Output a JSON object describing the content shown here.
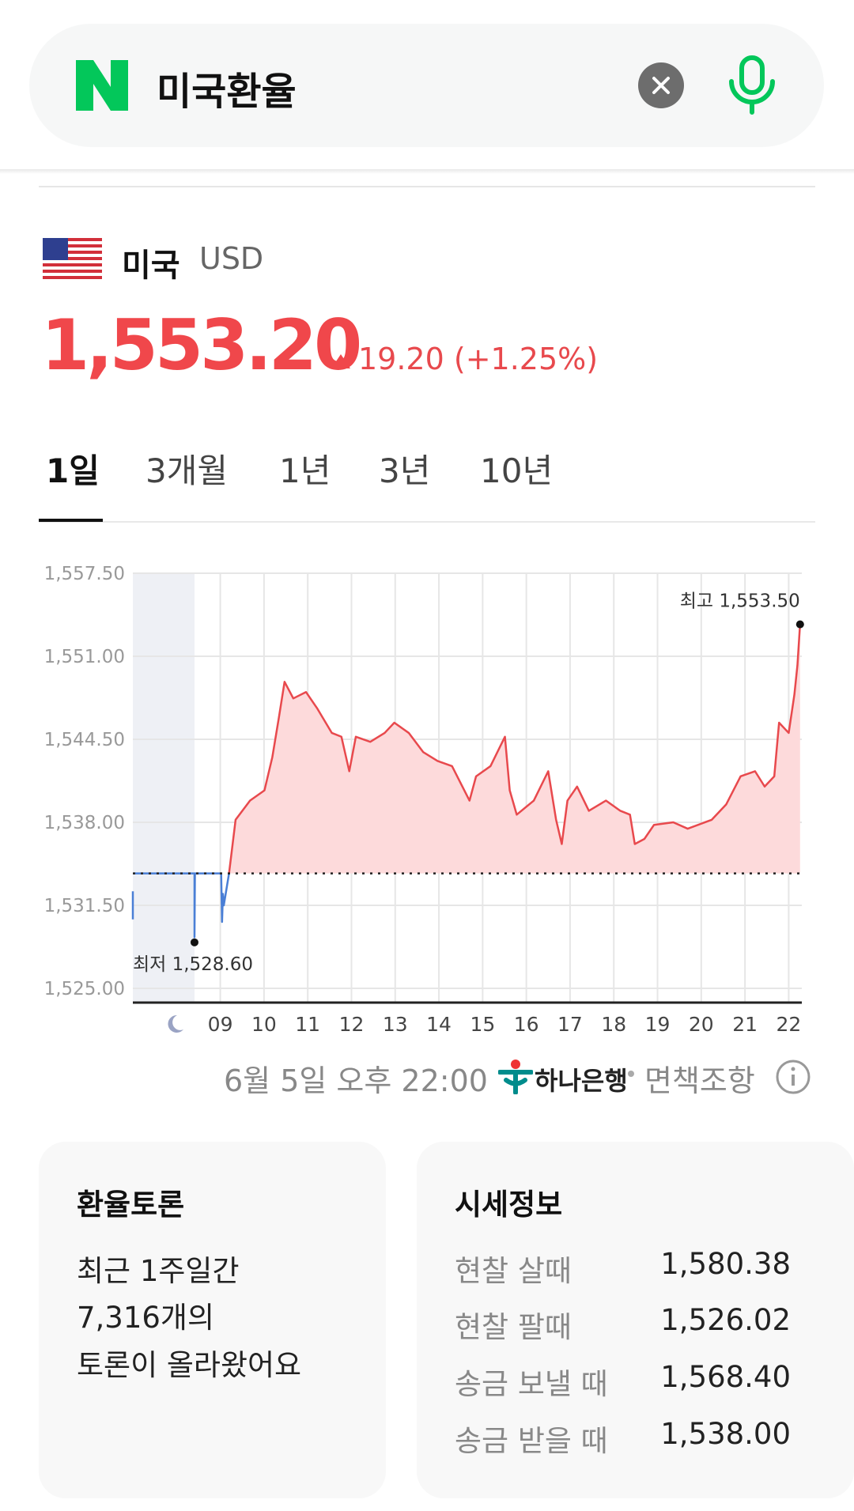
{
  "search": {
    "query": "미국환율"
  },
  "currency": {
    "country": "미국",
    "code": "USD",
    "rate": "1,553.20",
    "change": "19.20 (+1.25%)"
  },
  "tabs": [
    "1일",
    "3개월",
    "1년",
    "3년",
    "10년"
  ],
  "chart_data": {
    "type": "line",
    "xlim": [
      7,
      22.3
    ],
    "xticks": [
      {
        "value": 9,
        "label": "09"
      },
      10,
      11,
      12,
      13,
      14,
      15,
      16,
      17,
      18,
      19,
      20,
      21,
      22
    ],
    "ylim": [
      1525,
      1557.5
    ],
    "yticks": [
      {
        "value": 1525,
        "label": "1,525.00"
      },
      {
        "value": 1531.5,
        "label": "1,531.50"
      },
      {
        "value": 1538,
        "label": "1,538.00"
      },
      {
        "value": 1544.5,
        "label": "1,544.50"
      },
      {
        "value": 1551,
        "label": "1,551.00"
      },
      {
        "value": 1557.5,
        "label": "1,557.50"
      }
    ],
    "grid": true,
    "baseline": 1534,
    "night_range": [
      7,
      8.41
    ],
    "series": [
      {
        "color": "#4a7fd6",
        "x": [
          7.0,
          7.0,
          7.01,
          7.02,
          8.41,
          8.41,
          8.42,
          9.02,
          9.04,
          9.06,
          9.08,
          9.2
        ],
        "values": [
          1532.6,
          1530.4,
          null,
          1534,
          1534,
          1529,
          1534,
          1534,
          1530.2,
          1532.4,
          1531.5,
          1534
        ]
      },
      {
        "color": "#e8494d",
        "fill": "#fddadb",
        "x": [
          9.2,
          9.35,
          9.68,
          10.01,
          10.19,
          10.34,
          10.47,
          10.67,
          10.96,
          11.22,
          11.55,
          11.77,
          11.95,
          12.1,
          12.43,
          12.76,
          12.98,
          13.31,
          13.64,
          13.97,
          14.3,
          14.7,
          14.85,
          15.18,
          15.51,
          15.62,
          15.78,
          16.17,
          16.5,
          16.68,
          16.81,
          16.94,
          17.16,
          17.43,
          17.82,
          18.15,
          18.37,
          18.48,
          18.7,
          18.92,
          19.36,
          19.69,
          20.24,
          20.57,
          20.9,
          21.23,
          21.45,
          21.67,
          21.78,
          22.0,
          22.13,
          22.2,
          22.26
        ],
        "values": [
          1534.0,
          1538.2,
          1539.7,
          1540.5,
          1543.1,
          1546.2,
          1549.0,
          1547.7,
          1548.2,
          1546.9,
          1545.0,
          1544.7,
          1542.0,
          1544.7,
          1544.3,
          1545.0,
          1545.8,
          1545.0,
          1543.5,
          1542.8,
          1542.4,
          1539.7,
          1541.6,
          1542.4,
          1544.7,
          1540.5,
          1538.6,
          1539.7,
          1542.0,
          1538.2,
          1536.3,
          1539.7,
          1540.8,
          1538.9,
          1539.7,
          1538.9,
          1538.6,
          1536.3,
          1536.7,
          1537.8,
          1538.0,
          1537.5,
          1538.2,
          1539.4,
          1541.6,
          1542.0,
          1540.8,
          1541.6,
          1545.8,
          1545.0,
          1548.0,
          1550.3,
          1553.5
        ]
      }
    ],
    "annotations": [
      {
        "label": "최고 1,553.50",
        "x": 22.26,
        "y": 1553.5
      },
      {
        "label": "최저 1,528.60",
        "x": 8.41,
        "y": 1528.6
      }
    ]
  },
  "source": {
    "time": "6월 5일 오후 22:00",
    "bank": "하나은행",
    "disclaimer": "면책조항"
  },
  "discussion": {
    "title": "환율토론",
    "lines": [
      "최근 1주일간",
      "7,316개의",
      "토론이 올라왔어요"
    ]
  },
  "price_info": {
    "title": "시세정보",
    "rows": [
      [
        "현찰 살때",
        "1,580.38"
      ],
      [
        "현찰 팔때",
        "1,526.02"
      ],
      [
        "송금 보낼 때",
        "1,568.40"
      ],
      [
        "송금 받을 때",
        "1,538.00"
      ]
    ]
  }
}
